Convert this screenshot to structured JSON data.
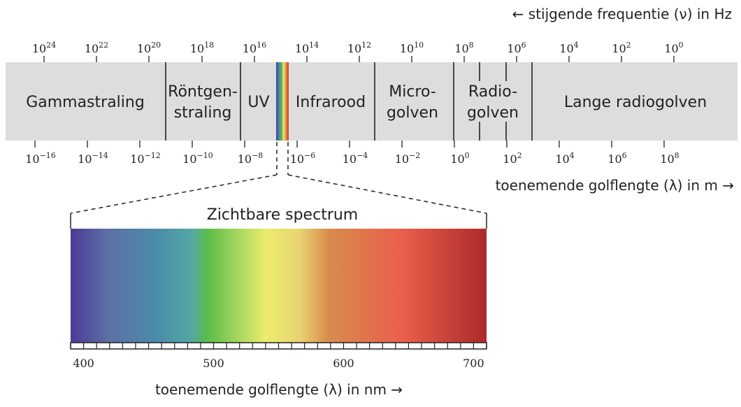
{
  "frequency_axis": {
    "title": "← stijgende frequentie (ν) in Hz",
    "base": "10",
    "exponents": [
      "24",
      "22",
      "20",
      "18",
      "16",
      "14",
      "12",
      "10",
      "8",
      "6",
      "4",
      "2",
      "0"
    ]
  },
  "wavelength_axis": {
    "title": "toenemende golflengte (λ) in m →",
    "base": "10",
    "exponents": [
      "−16",
      "−14",
      "−12",
      "−10",
      "−8",
      "−6",
      "−4",
      "−2",
      "0",
      "2",
      "4",
      "6",
      "8"
    ]
  },
  "bands": {
    "gamma": "Gammastraling",
    "xray_line1": "Röntgen-",
    "xray_line2": "straling",
    "uv": "UV",
    "infrared": "Infrarood",
    "micro_line1": "Micro-",
    "micro_line2": "golven",
    "radio_line1": "Radio-",
    "radio_line2": "golven",
    "long_radio": "Lange radiogolven"
  },
  "visible_spectrum": {
    "title": "Zichtbare spectrum",
    "ticks": [
      "400",
      "500",
      "600",
      "700"
    ],
    "axis_title": "toenemende golflengte (λ) in nm →",
    "range_nm": [
      390,
      710
    ]
  },
  "colors": {
    "band_fill": "#dddddd",
    "line": "#222222",
    "violet": "#4d3b93",
    "blue": "#4a8aa8",
    "green": "#5bbe45",
    "yellow": "#ecec6e",
    "orange": "#d98a4c",
    "red": "#e85c4a",
    "dark_red": "#ad2c2a"
  }
}
